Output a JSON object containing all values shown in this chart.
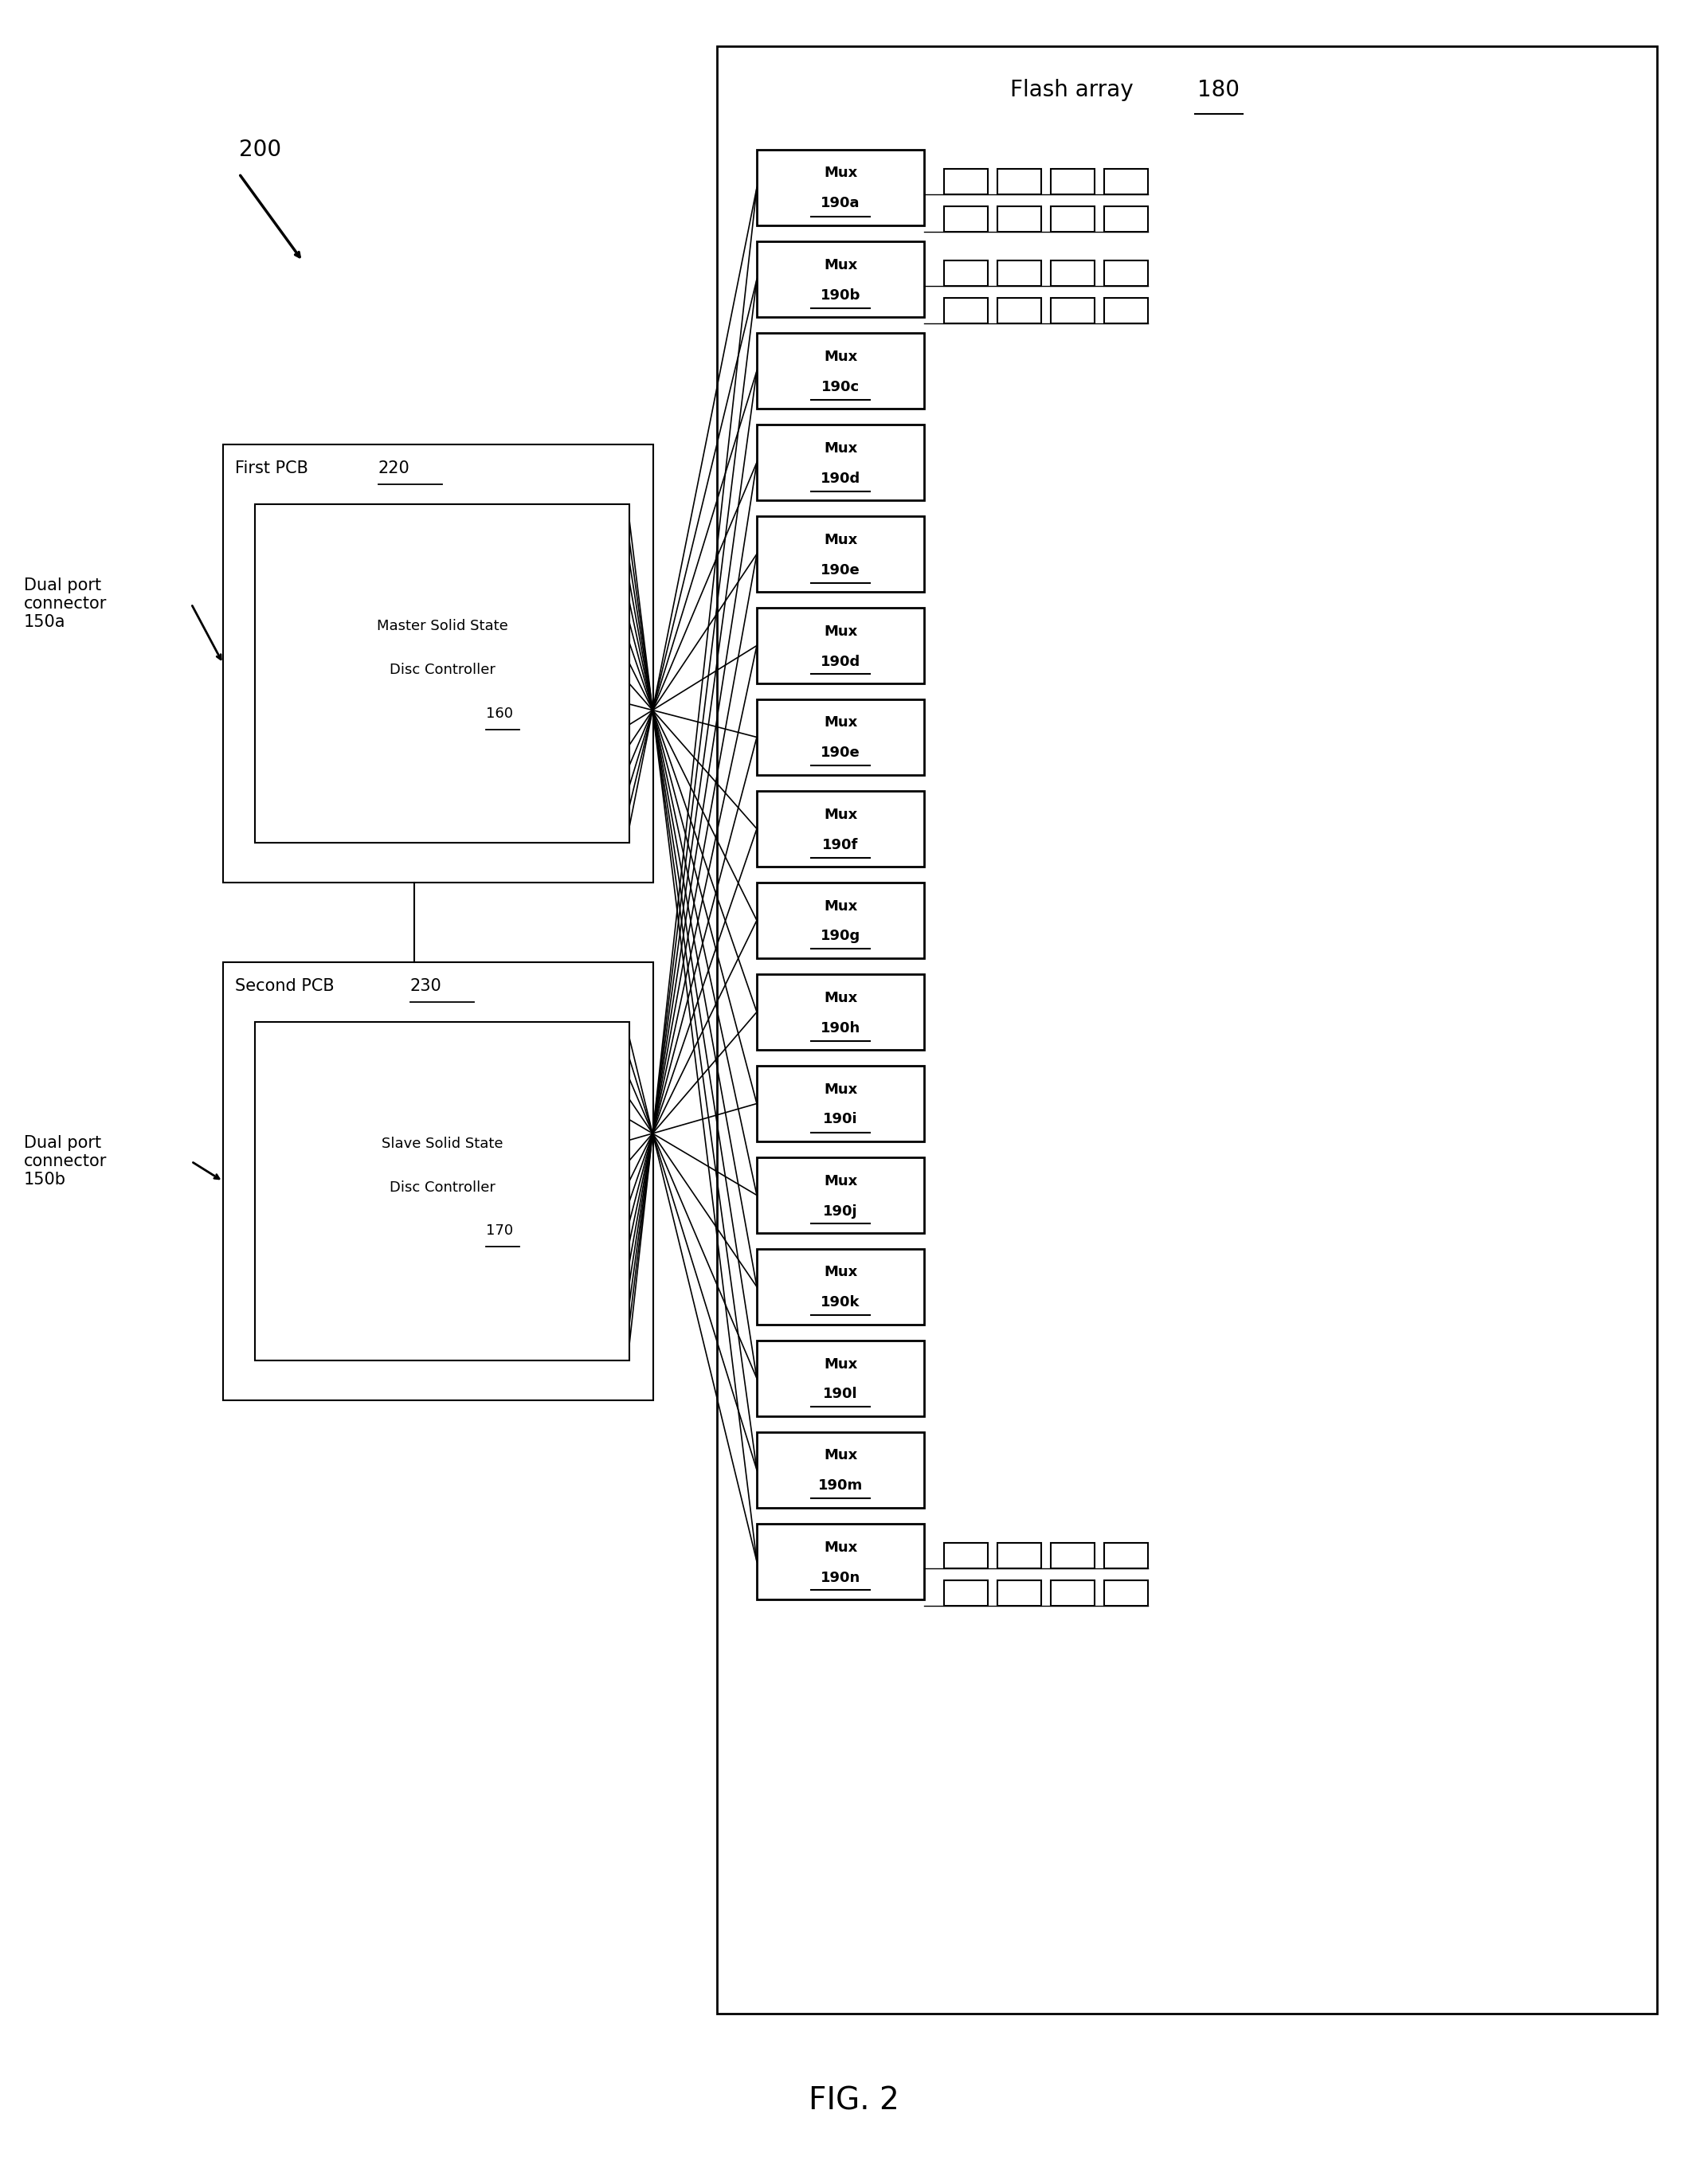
{
  "fig_width": 21.44,
  "fig_height": 27.08,
  "bg_color": "#ffffff",
  "title_label": "FIG. 2",
  "diagram_label": "200",
  "flash_array_label": "Flash array",
  "flash_array_num": "180",
  "mux_labels": [
    "Mux\n190a",
    "Mux\n190b",
    "Mux\n190c",
    "Mux\n190d",
    "Mux\n190e",
    "Mux\n190d",
    "Mux\n190e",
    "Mux\n190f",
    "Mux\n190g",
    "Mux\n190h",
    "Mux\n190i",
    "Mux\n190j",
    "Mux\n190k",
    "Mux\n190l",
    "Mux\n190m",
    "Mux\n190n"
  ],
  "first_pcb_label": "First PCB",
  "first_pcb_num": "220",
  "master_label": "Master Solid State\nDisc Controller",
  "master_num": "160",
  "second_pcb_label": "Second PCB",
  "second_pcb_num": "230",
  "slave_label": "Slave Solid State\nDisc Controller",
  "slave_num": "170",
  "dual_port_a_label": "Dual port\nconnector\n150a",
  "dual_port_b_label": "Dual port\nconnector\n150b",
  "has_flash_chips": [
    0,
    1,
    15
  ],
  "line_color": "#000000",
  "text_color": "#000000"
}
